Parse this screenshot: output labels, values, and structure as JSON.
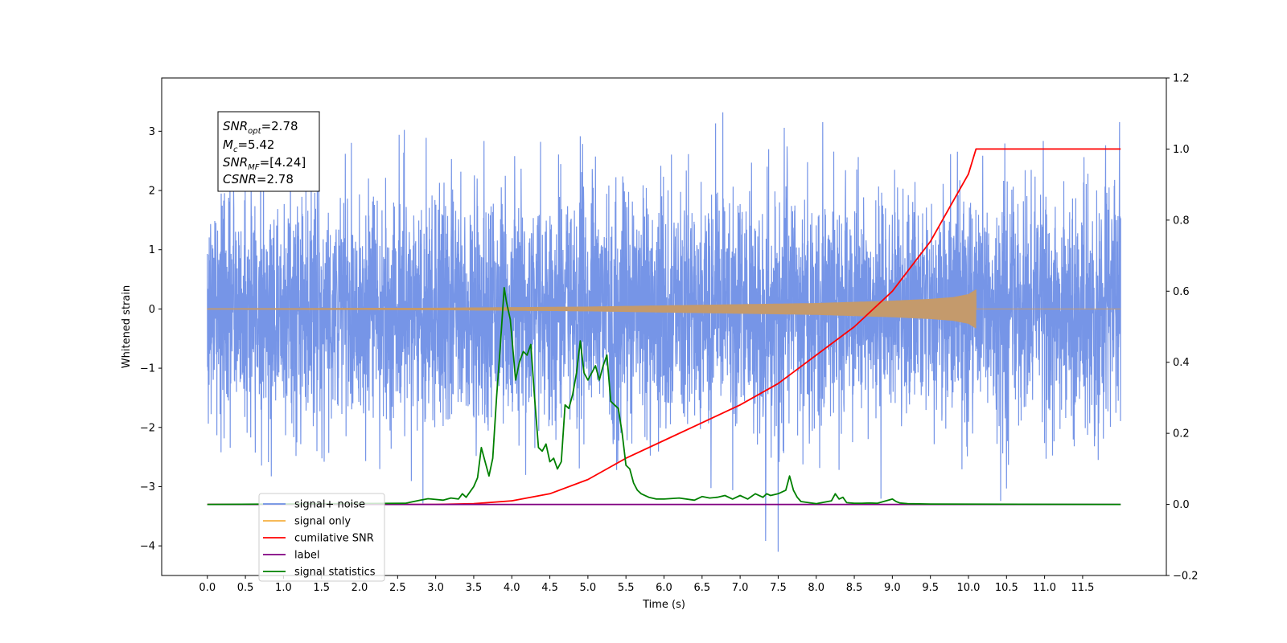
{
  "chart_data": {
    "type": "line",
    "xlabel": "Time (s)",
    "ylabel": "Whitened strain",
    "xlim": [
      -0.6,
      12.6
    ],
    "ylim": [
      -4.5,
      3.9
    ],
    "y2lim": [
      -0.2,
      1.2
    ],
    "grid": false,
    "legend_position": "lower-left",
    "x_ticks": [
      "0.0",
      "0.5",
      "1.0",
      "1.5",
      "2.0",
      "2.5",
      "3.0",
      "3.5",
      "4.0",
      "4.5",
      "5.0",
      "5.5",
      "6.0",
      "6.5",
      "7.0",
      "7.5",
      "8.0",
      "8.5",
      "9.0",
      "9.5",
      "10.0",
      "10.5",
      "11.0",
      "11.5"
    ],
    "y_ticks": [
      "3",
      "2",
      "1",
      "0",
      "−1",
      "−2",
      "−3",
      "−4"
    ],
    "y2_ticks": [
      "1.2",
      "1.0",
      "0.8",
      "0.6",
      "0.4",
      "0.2",
      "0.0",
      "−0.2"
    ],
    "annotation": {
      "snr_opt": {
        "base": "SNR",
        "sub": "opt",
        "value": "=2.78"
      },
      "mc": {
        "base": "M",
        "sub": "c",
        "value": "=5.42"
      },
      "snr_mf": {
        "base": "SNR",
        "sub": "MF",
        "value": "=[4.24]"
      },
      "csnr": {
        "base": "CSNR",
        "value": "=2.78"
      }
    },
    "series": [
      {
        "name": "signal+ noise",
        "axis": "left",
        "color": "#6f8fe6",
        "description": "whitened noisy strain, roughly N(0,1) with peaks reaching about ±3.5",
        "x_range": [
          0.0,
          12.0
        ],
        "y_range": [
          -4.1,
          3.6
        ]
      },
      {
        "name": "signal only",
        "axis": "left",
        "color": "#f5b041",
        "description": "chirp waveform growing in amplitude until merger at about 10.1 s",
        "x": [
          0,
          3,
          5,
          6,
          7,
          8,
          9,
          9.5,
          9.8,
          10.0,
          10.1,
          12.0
        ],
        "envelope": [
          0.01,
          0.02,
          0.04,
          0.06,
          0.08,
          0.1,
          0.14,
          0.17,
          0.2,
          0.25,
          0.33,
          0.0
        ]
      },
      {
        "name": "cumilative SNR",
        "axis": "right",
        "color": "#ff0000",
        "x": [
          0.0,
          3.0,
          3.5,
          4.0,
          4.5,
          5.0,
          5.5,
          6.0,
          6.5,
          7.0,
          7.5,
          8.0,
          8.5,
          9.0,
          9.5,
          10.0,
          10.1,
          12.0
        ],
        "values": [
          0.0,
          0.0,
          0.002,
          0.01,
          0.03,
          0.07,
          0.13,
          0.18,
          0.23,
          0.28,
          0.34,
          0.42,
          0.5,
          0.6,
          0.74,
          0.93,
          1.0,
          1.0
        ]
      },
      {
        "name": "label",
        "axis": "right",
        "color": "#800080",
        "x": [
          0.0,
          12.0
        ],
        "values": [
          0.0,
          0.0
        ]
      },
      {
        "name": "signal statistics",
        "axis": "right",
        "color": "#008000",
        "x": [
          0.0,
          2.6,
          2.8,
          2.9,
          3.0,
          3.1,
          3.2,
          3.3,
          3.35,
          3.4,
          3.5,
          3.55,
          3.6,
          3.65,
          3.7,
          3.75,
          3.8,
          3.85,
          3.9,
          3.93,
          3.98,
          4.05,
          4.1,
          4.15,
          4.2,
          4.25,
          4.3,
          4.35,
          4.4,
          4.45,
          4.5,
          4.55,
          4.6,
          4.65,
          4.7,
          4.75,
          4.8,
          4.85,
          4.9,
          4.95,
          5.0,
          5.05,
          5.1,
          5.15,
          5.2,
          5.25,
          5.3,
          5.35,
          5.4,
          5.45,
          5.5,
          5.55,
          5.6,
          5.65,
          5.7,
          5.8,
          5.9,
          6.0,
          6.2,
          6.4,
          6.5,
          6.6,
          6.7,
          6.8,
          6.9,
          7.0,
          7.1,
          7.2,
          7.3,
          7.35,
          7.4,
          7.5,
          7.6,
          7.65,
          7.7,
          7.75,
          7.8,
          7.9,
          8.0,
          8.2,
          8.25,
          8.3,
          8.35,
          8.4,
          8.5,
          8.6,
          8.7,
          8.8,
          9.0,
          9.05,
          9.1,
          9.2,
          9.5,
          12.0
        ],
        "values": [
          0.0,
          0.003,
          0.012,
          0.016,
          0.014,
          0.012,
          0.018,
          0.015,
          0.03,
          0.02,
          0.05,
          0.075,
          0.16,
          0.12,
          0.08,
          0.13,
          0.3,
          0.45,
          0.61,
          0.57,
          0.52,
          0.35,
          0.4,
          0.43,
          0.42,
          0.45,
          0.3,
          0.16,
          0.15,
          0.17,
          0.12,
          0.13,
          0.1,
          0.12,
          0.28,
          0.27,
          0.31,
          0.37,
          0.46,
          0.37,
          0.35,
          0.37,
          0.39,
          0.35,
          0.39,
          0.42,
          0.29,
          0.28,
          0.27,
          0.2,
          0.11,
          0.1,
          0.06,
          0.04,
          0.03,
          0.02,
          0.015,
          0.015,
          0.018,
          0.012,
          0.022,
          0.018,
          0.02,
          0.025,
          0.015,
          0.025,
          0.015,
          0.03,
          0.02,
          0.03,
          0.025,
          0.03,
          0.04,
          0.08,
          0.04,
          0.02,
          0.008,
          0.005,
          0.002,
          0.01,
          0.03,
          0.015,
          0.02,
          0.005,
          0.003,
          0.003,
          0.004,
          0.003,
          0.015,
          0.008,
          0.004,
          0.002,
          0.001,
          0.0
        ]
      }
    ]
  }
}
